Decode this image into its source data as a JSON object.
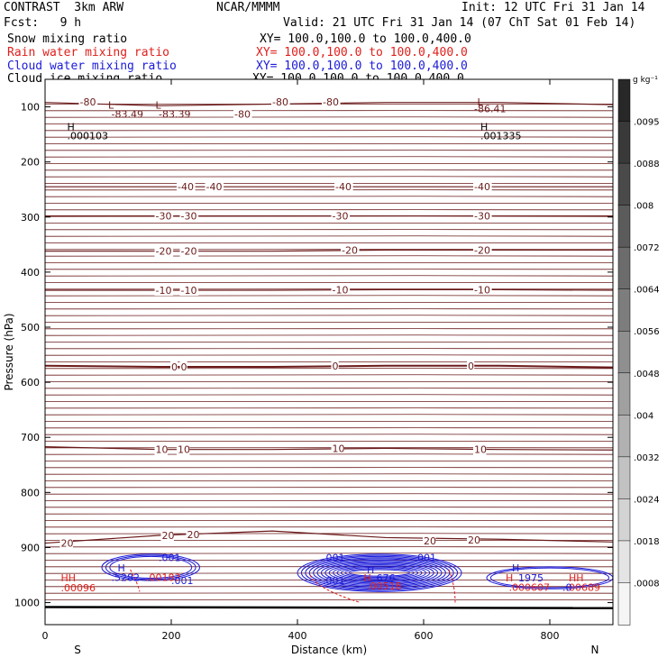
{
  "header": {
    "model": "CONTRAST  3km ARW",
    "center": "NCAR/MMMM",
    "init": "Init: 12 UTC Fri 31 Jan 14",
    "fcst": "Fcst:   9 h",
    "valid": "Valid: 21 UTC Fri 31 Jan 14 (07 ChT Sat 01 Feb 14)"
  },
  "fields": [
    {
      "name": "Snow mixing ratio",
      "xy": "XY= 100.0,100.0 to 100.0,400.0",
      "color": "#000000"
    },
    {
      "name": "Rain water mixing ratio",
      "xy": "XY= 100.0,100.0 to 100.0,400.0",
      "color": "#e0201b"
    },
    {
      "name": "Cloud water mixing ratio",
      "xy": "XY= 100.0,100.0 to 100.0,400.0",
      "color": "#1b1bd8"
    },
    {
      "name": "Cloud ice mixing ratio",
      "xy": "XY= 100.0,100.0 to 100.0,400.0",
      "color": "#000000"
    }
  ],
  "chart_data": {
    "type": "contour",
    "xlabel": "Distance (km)",
    "ylabel": "Pressure (hPa)",
    "xlim": [
      0,
      900
    ],
    "ylim": [
      1040,
      50
    ],
    "x_ticks": [
      0,
      200,
      400,
      600,
      800
    ],
    "y_ticks": [
      100,
      200,
      300,
      400,
      500,
      600,
      700,
      800,
      900,
      1000
    ],
    "x_end_labels": {
      "left": "S",
      "right": "N"
    },
    "temperature_contours": [
      {
        "value": -80,
        "label": "-80",
        "pressures": [
          92,
          98,
          95,
          92,
          92,
          96
        ]
      },
      {
        "value": -40,
        "label": "-40",
        "pressures": [
          245,
          245,
          245,
          245,
          245,
          245
        ]
      },
      {
        "value": -30,
        "label": "-30",
        "pressures": [
          298,
          298,
          298,
          298,
          298,
          298
        ]
      },
      {
        "value": -20,
        "label": "-20",
        "pressures": [
          362,
          362,
          362,
          360,
          360,
          360
        ]
      },
      {
        "value": -10,
        "label": "-10",
        "pressures": [
          433,
          433,
          433,
          432,
          432,
          433
        ]
      },
      {
        "value": 0,
        "label": "0",
        "pressures": [
          570,
          572,
          572,
          570,
          570,
          573
        ]
      },
      {
        "value": 10,
        "label": "10",
        "pressures": [
          717,
          722,
          722,
          720,
          722,
          723
        ]
      },
      {
        "value": 20,
        "label": "20",
        "pressures": [
          892,
          878,
          870,
          882,
          885,
          890
        ]
      }
    ],
    "contour_x": [
      0,
      180,
      360,
      540,
      720,
      900
    ],
    "contour_labels": [
      {
        "text": "-80",
        "x": 55,
        "p": 91
      },
      {
        "text": "-80",
        "x": 360,
        "p": 91
      },
      {
        "text": "-80",
        "x": 440,
        "p": 91
      },
      {
        "text": "-80",
        "x": 300,
        "p": 113
      },
      {
        "text": "-40",
        "x": 210,
        "p": 245
      },
      {
        "text": "-40",
        "x": 255,
        "p": 245
      },
      {
        "text": "-40",
        "x": 460,
        "p": 245
      },
      {
        "text": "-40",
        "x": 680,
        "p": 245
      },
      {
        "text": "-30",
        "x": 175,
        "p": 298
      },
      {
        "text": "-30",
        "x": 215,
        "p": 298
      },
      {
        "text": "-30",
        "x": 455,
        "p": 298
      },
      {
        "text": "-30",
        "x": 680,
        "p": 298
      },
      {
        "text": "-20",
        "x": 175,
        "p": 362
      },
      {
        "text": "-20",
        "x": 215,
        "p": 362
      },
      {
        "text": "-20",
        "x": 470,
        "p": 360
      },
      {
        "text": "-20",
        "x": 680,
        "p": 360
      },
      {
        "text": "-10",
        "x": 175,
        "p": 433
      },
      {
        "text": "-10",
        "x": 215,
        "p": 433
      },
      {
        "text": "-10",
        "x": 455,
        "p": 432
      },
      {
        "text": "-10",
        "x": 680,
        "p": 432
      },
      {
        "text": "0",
        "x": 200,
        "p": 572
      },
      {
        "text": "0",
        "x": 215,
        "p": 572
      },
      {
        "text": "0",
        "x": 455,
        "p": 570
      },
      {
        "text": "0",
        "x": 670,
        "p": 570
      },
      {
        "text": "10",
        "x": 175,
        "p": 722
      },
      {
        "text": "10",
        "x": 210,
        "p": 722
      },
      {
        "text": "10",
        "x": 455,
        "p": 720
      },
      {
        "text": "10",
        "x": 680,
        "p": 722
      },
      {
        "text": "20",
        "x": 25,
        "p": 892
      },
      {
        "text": "20",
        "x": 185,
        "p": 878
      },
      {
        "text": "20",
        "x": 225,
        "p": 876
      },
      {
        "text": "20",
        "x": 600,
        "p": 888
      },
      {
        "text": "20",
        "x": 670,
        "p": 886
      }
    ],
    "extrema": [
      {
        "text": "L",
        "x": 100,
        "p": 97,
        "color": "#6b1a1a"
      },
      {
        "text": "-83.49",
        "x": 105,
        "p": 113,
        "color": "#6b1a1a"
      },
      {
        "text": "L",
        "x": 175,
        "p": 97,
        "color": "#6b1a1a"
      },
      {
        "text": "-83.39",
        "x": 180,
        "p": 113,
        "color": "#6b1a1a"
      },
      {
        "text": "L",
        "x": 685,
        "p": 91,
        "color": "#6b1a1a"
      },
      {
        "text": "-86.41",
        "x": 680,
        "p": 103,
        "color": "#6b1a1a"
      },
      {
        "text": "H",
        "x": 35,
        "p": 136,
        "color": "#000000"
      },
      {
        "text": ".000103",
        "x": 35,
        "p": 152,
        "color": "#000000"
      },
      {
        "text": "H",
        "x": 690,
        "p": 136,
        "color": "#000000"
      },
      {
        "text": ".001335",
        "x": 690,
        "p": 152,
        "color": "#000000"
      },
      {
        "text": "HH",
        "x": 25,
        "p": 955,
        "color": "#e0201b"
      },
      {
        "text": ".00096",
        "x": 25,
        "p": 973,
        "color": "#e0201b"
      },
      {
        "text": "H",
        "x": 115,
        "p": 937,
        "color": "#1b1bd8"
      },
      {
        "text": ".5282",
        "x": 105,
        "p": 954,
        "color": "#1b1bd8"
      },
      {
        "text": ".00183",
        "x": 160,
        "p": 954,
        "color": "#e0201b"
      },
      {
        "text": ".001",
        "x": 180,
        "p": 918,
        "color": "#1b1bd8"
      },
      {
        "text": ".001",
        "x": 200,
        "p": 960,
        "color": "#1b1bd8"
      },
      {
        "text": ".001",
        "x": 440,
        "p": 918,
        "color": "#1b1bd8"
      },
      {
        "text": ".001",
        "x": 440,
        "p": 960,
        "color": "#1b1bd8"
      },
      {
        "text": "H",
        "x": 510,
        "p": 940,
        "color": "#1b1bd8"
      },
      {
        "text": "H",
        "x": 505,
        "p": 955,
        "color": "#e0201b"
      },
      {
        "text": ".676",
        "x": 520,
        "p": 955,
        "color": "#1b1bd8"
      },
      {
        "text": ".00518",
        "x": 510,
        "p": 970,
        "color": "#e0201b"
      },
      {
        "text": ".001",
        "x": 585,
        "p": 918,
        "color": "#1b1bd8"
      },
      {
        "text": "H",
        "x": 740,
        "p": 937,
        "color": "#1b1bd8"
      },
      {
        "text": "H",
        "x": 730,
        "p": 955,
        "color": "#e0201b"
      },
      {
        "text": "1975",
        "x": 750,
        "p": 955,
        "color": "#1b1bd8"
      },
      {
        "text": ".000607",
        "x": 735,
        "p": 972,
        "color": "#e0201b"
      },
      {
        "text": "HH",
        "x": 830,
        "p": 955,
        "color": "#e0201b"
      },
      {
        "text": ".00689",
        "x": 825,
        "p": 972,
        "color": "#e0201b"
      },
      {
        "text": ".0",
        "x": 820,
        "p": 972,
        "color": "#1b1bd8"
      }
    ],
    "cloud_water_regions": [
      {
        "x0": 90,
        "x1": 245,
        "p0": 912,
        "p1": 960,
        "rings": 3
      },
      {
        "x0": 400,
        "x1": 660,
        "p0": 912,
        "p1": 980,
        "rings": 14
      },
      {
        "x0": 700,
        "x1": 900,
        "p0": 935,
        "p1": 975,
        "rings": 2
      }
    ],
    "colorbar": {
      "unit": "g kg⁻¹",
      "labels": [
        ".0095",
        ".0088",
        ".008",
        ".0072",
        ".0064",
        ".0056",
        ".0048",
        ".004",
        ".0032",
        ".0024",
        ".0018",
        ".0008"
      ]
    }
  }
}
